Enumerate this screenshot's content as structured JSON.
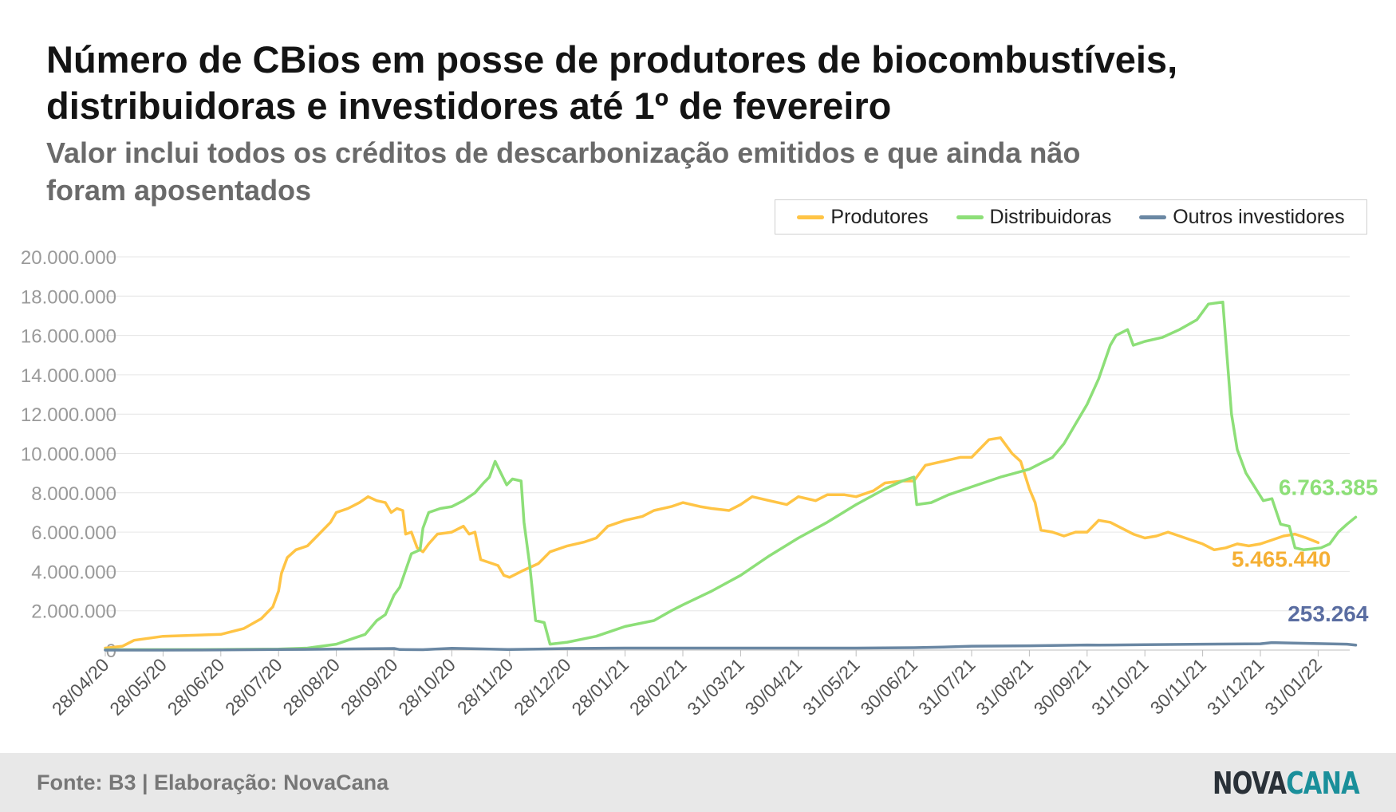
{
  "header": {
    "title": "Número de CBios em posse de produtores de biocombustíveis, distribuidoras e investidores até 1º de fevereiro",
    "subtitle": "Valor inclui todos os créditos de descarbonização emitidos e que ainda não foram aposentados"
  },
  "footer": {
    "source": "Fonte: B3 | Elaboração: NovaCana",
    "logo_part1": "NOVA",
    "logo_part2": "CANA"
  },
  "chart_data": {
    "type": "line",
    "title": "Número de CBios em posse de produtores de biocombustíveis, distribuidoras e investidores até 1º de fevereiro",
    "subtitle": "Valor inclui todos os créditos de descarbonização emitidos e que ainda não foram aposentados",
    "xlabel": "",
    "ylabel": "",
    "ylim": [
      0,
      20000000
    ],
    "grid": true,
    "legend_position": "top-right",
    "y_ticks": [
      "0",
      "2.000.000",
      "4.000.000",
      "6.000.000",
      "8.000.000",
      "10.000.000",
      "12.000.000",
      "14.000.000",
      "16.000.000",
      "18.000.000",
      "20.000.000"
    ],
    "x_ticks": [
      "28/04/20",
      "28/05/20",
      "28/06/20",
      "28/07/20",
      "28/08/20",
      "28/09/20",
      "28/10/20",
      "28/11/20",
      "28/12/20",
      "28/01/21",
      "28/02/21",
      "31/03/21",
      "30/04/21",
      "31/05/21",
      "30/06/21",
      "31/07/21",
      "31/08/21",
      "30/09/21",
      "31/10/21",
      "30/11/21",
      "31/12/21",
      "31/01/22"
    ],
    "series": [
      {
        "name": "Produtores",
        "color": "#ffc445",
        "end_label": "5.465.440",
        "label_color": "#f5b035",
        "points": [
          [
            0,
            100000
          ],
          [
            0.3,
            200000
          ],
          [
            0.5,
            500000
          ],
          [
            1,
            700000
          ],
          [
            1.5,
            750000
          ],
          [
            2,
            800000
          ],
          [
            2.4,
            1100000
          ],
          [
            2.7,
            1600000
          ],
          [
            2.9,
            2200000
          ],
          [
            3,
            3000000
          ],
          [
            3.05,
            3900000
          ],
          [
            3.15,
            4700000
          ],
          [
            3.3,
            5100000
          ],
          [
            3.5,
            5300000
          ],
          [
            3.7,
            5900000
          ],
          [
            3.9,
            6500000
          ],
          [
            4.0,
            7000000
          ],
          [
            4.2,
            7200000
          ],
          [
            4.4,
            7500000
          ],
          [
            4.55,
            7800000
          ],
          [
            4.7,
            7600000
          ],
          [
            4.85,
            7500000
          ],
          [
            4.95,
            7000000
          ],
          [
            5.05,
            7200000
          ],
          [
            5.15,
            7100000
          ],
          [
            5.2,
            5900000
          ],
          [
            5.3,
            6000000
          ],
          [
            5.4,
            5200000
          ],
          [
            5.5,
            5000000
          ],
          [
            5.6,
            5400000
          ],
          [
            5.75,
            5900000
          ],
          [
            6,
            6000000
          ],
          [
            6.2,
            6300000
          ],
          [
            6.3,
            5900000
          ],
          [
            6.4,
            6000000
          ],
          [
            6.5,
            4600000
          ],
          [
            6.7,
            4400000
          ],
          [
            6.8,
            4300000
          ],
          [
            6.9,
            3800000
          ],
          [
            7.0,
            3700000
          ],
          [
            7.2,
            4000000
          ],
          [
            7.5,
            4400000
          ],
          [
            7.7,
            5000000
          ],
          [
            8,
            5300000
          ],
          [
            8.3,
            5500000
          ],
          [
            8.5,
            5700000
          ],
          [
            8.7,
            6300000
          ],
          [
            9,
            6600000
          ],
          [
            9.3,
            6800000
          ],
          [
            9.5,
            7100000
          ],
          [
            9.8,
            7300000
          ],
          [
            10,
            7500000
          ],
          [
            10.3,
            7300000
          ],
          [
            10.5,
            7200000
          ],
          [
            10.8,
            7100000
          ],
          [
            11,
            7400000
          ],
          [
            11.2,
            7800000
          ],
          [
            11.5,
            7600000
          ],
          [
            11.8,
            7400000
          ],
          [
            12,
            7800000
          ],
          [
            12.3,
            7600000
          ],
          [
            12.5,
            7900000
          ],
          [
            12.8,
            7900000
          ],
          [
            13,
            7800000
          ],
          [
            13.3,
            8100000
          ],
          [
            13.5,
            8500000
          ],
          [
            13.8,
            8600000
          ],
          [
            14,
            8600000
          ],
          [
            14.2,
            9400000
          ],
          [
            14.5,
            9600000
          ],
          [
            14.8,
            9800000
          ],
          [
            15,
            9800000
          ],
          [
            15.1,
            10100000
          ],
          [
            15.3,
            10700000
          ],
          [
            15.5,
            10800000
          ],
          [
            15.7,
            10000000
          ],
          [
            15.85,
            9600000
          ],
          [
            16,
            8200000
          ],
          [
            16.1,
            7500000
          ],
          [
            16.2,
            6100000
          ],
          [
            16.4,
            6000000
          ],
          [
            16.6,
            5800000
          ],
          [
            16.8,
            6000000
          ],
          [
            17,
            6000000
          ],
          [
            17.2,
            6600000
          ],
          [
            17.4,
            6500000
          ],
          [
            17.6,
            6200000
          ],
          [
            17.8,
            5900000
          ],
          [
            18,
            5700000
          ],
          [
            18.2,
            5800000
          ],
          [
            18.4,
            6000000
          ],
          [
            18.6,
            5800000
          ],
          [
            18.8,
            5600000
          ],
          [
            19,
            5400000
          ],
          [
            19.2,
            5100000
          ],
          [
            19.4,
            5200000
          ],
          [
            19.6,
            5400000
          ],
          [
            19.8,
            5300000
          ],
          [
            20,
            5400000
          ],
          [
            20.2,
            5600000
          ],
          [
            20.4,
            5800000
          ],
          [
            20.6,
            5900000
          ],
          [
            20.8,
            5700000
          ],
          [
            21,
            5465440
          ]
        ]
      },
      {
        "name": "Distribuidoras",
        "color": "#8ddf78",
        "end_label": "6.763.385",
        "label_color": "#8ddf78",
        "points": [
          [
            0,
            20000
          ],
          [
            2,
            30000
          ],
          [
            3,
            50000
          ],
          [
            3.5,
            100000
          ],
          [
            4,
            300000
          ],
          [
            4.3,
            600000
          ],
          [
            4.5,
            800000
          ],
          [
            4.7,
            1500000
          ],
          [
            4.85,
            1800000
          ],
          [
            5.0,
            2800000
          ],
          [
            5.1,
            3200000
          ],
          [
            5.3,
            4900000
          ],
          [
            5.45,
            5100000
          ],
          [
            5.5,
            6200000
          ],
          [
            5.6,
            7000000
          ],
          [
            5.8,
            7200000
          ],
          [
            6,
            7300000
          ],
          [
            6.2,
            7600000
          ],
          [
            6.4,
            8000000
          ],
          [
            6.55,
            8500000
          ],
          [
            6.65,
            8800000
          ],
          [
            6.75,
            9600000
          ],
          [
            6.85,
            9000000
          ],
          [
            6.95,
            8400000
          ],
          [
            7.05,
            8700000
          ],
          [
            7.2,
            8600000
          ],
          [
            7.25,
            6500000
          ],
          [
            7.35,
            4300000
          ],
          [
            7.45,
            1500000
          ],
          [
            7.6,
            1400000
          ],
          [
            7.7,
            300000
          ],
          [
            8,
            400000
          ],
          [
            8.5,
            700000
          ],
          [
            9,
            1200000
          ],
          [
            9.5,
            1500000
          ],
          [
            9.8,
            2000000
          ],
          [
            10,
            2300000
          ],
          [
            10.5,
            3000000
          ],
          [
            11,
            3800000
          ],
          [
            11.5,
            4800000
          ],
          [
            12,
            5700000
          ],
          [
            12.5,
            6500000
          ],
          [
            13,
            7400000
          ],
          [
            13.5,
            8200000
          ],
          [
            13.8,
            8600000
          ],
          [
            14,
            8800000
          ],
          [
            14.05,
            7400000
          ],
          [
            14.3,
            7500000
          ],
          [
            14.6,
            7900000
          ],
          [
            15,
            8300000
          ],
          [
            15.5,
            8800000
          ],
          [
            16,
            9200000
          ],
          [
            16.4,
            9800000
          ],
          [
            16.6,
            10500000
          ],
          [
            16.8,
            11500000
          ],
          [
            17,
            12500000
          ],
          [
            17.2,
            13800000
          ],
          [
            17.4,
            15500000
          ],
          [
            17.5,
            16000000
          ],
          [
            17.7,
            16300000
          ],
          [
            17.8,
            15500000
          ],
          [
            18,
            15700000
          ],
          [
            18.3,
            15900000
          ],
          [
            18.6,
            16300000
          ],
          [
            18.9,
            16800000
          ],
          [
            19.1,
            17600000
          ],
          [
            19.35,
            17700000
          ],
          [
            19.5,
            12000000
          ],
          [
            19.6,
            10200000
          ],
          [
            19.75,
            9000000
          ],
          [
            19.9,
            8300000
          ],
          [
            20.05,
            7600000
          ],
          [
            20.2,
            7700000
          ],
          [
            20.35,
            6400000
          ],
          [
            20.5,
            6300000
          ],
          [
            20.6,
            5200000
          ],
          [
            20.75,
            5100000
          ],
          [
            20.9,
            5150000
          ],
          [
            21.05,
            5200000
          ],
          [
            21.2,
            5400000
          ],
          [
            21.35,
            6000000
          ],
          [
            21.5,
            6400000
          ],
          [
            21.65,
            6763385
          ]
        ]
      },
      {
        "name": "Outros investidores",
        "color": "#6a87a3",
        "end_label": "253.264",
        "label_color": "#5a6da1",
        "points": [
          [
            0,
            0
          ],
          [
            1,
            0
          ],
          [
            2,
            10000
          ],
          [
            3,
            30000
          ],
          [
            4,
            50000
          ],
          [
            5,
            80000
          ],
          [
            5.1,
            30000
          ],
          [
            5.5,
            20000
          ],
          [
            6,
            90000
          ],
          [
            6.5,
            60000
          ],
          [
            7,
            30000
          ],
          [
            7.5,
            50000
          ],
          [
            8,
            80000
          ],
          [
            9,
            100000
          ],
          [
            10,
            100000
          ],
          [
            11,
            100000
          ],
          [
            12,
            100000
          ],
          [
            13,
            100000
          ],
          [
            14,
            120000
          ],
          [
            14.5,
            150000
          ],
          [
            15,
            200000
          ],
          [
            16,
            220000
          ],
          [
            17,
            260000
          ],
          [
            17.2,
            250000
          ],
          [
            18,
            270000
          ],
          [
            19,
            300000
          ],
          [
            20,
            320000
          ],
          [
            20.2,
            380000
          ],
          [
            20.5,
            360000
          ],
          [
            21,
            330000
          ],
          [
            21.5,
            300000
          ],
          [
            21.65,
            253264
          ]
        ]
      }
    ],
    "x_range": [
      0,
      21.65
    ]
  }
}
